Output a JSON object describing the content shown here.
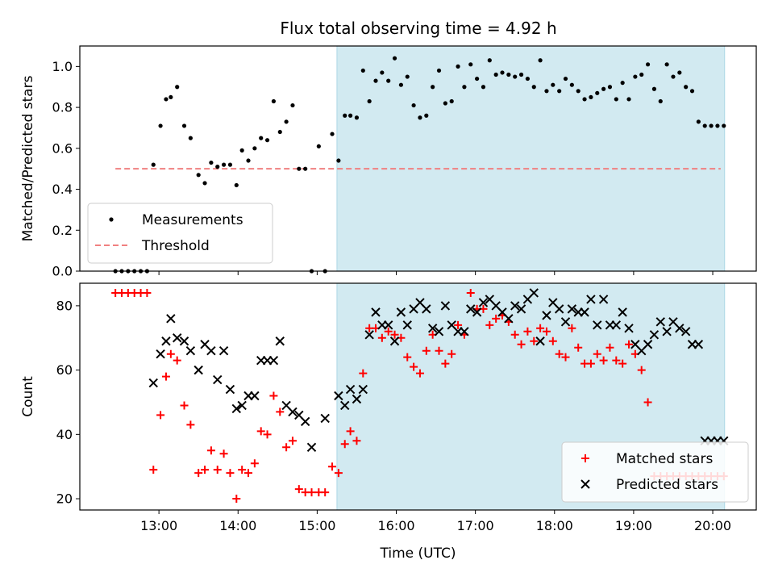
{
  "chart_data": {
    "title": "Flux total observing time = 4.92 h",
    "shaded_span": {
      "x": [
        15.25,
        20.15
      ],
      "color": "#add8e6"
    },
    "panels": [
      {
        "type": "scatter",
        "ylabel": "Matched/Predicted stars",
        "xlim": [
          12.0,
          20.55
        ],
        "ylim": [
          0.0,
          1.1
        ],
        "yticks": [
          0.0,
          0.2,
          0.4,
          0.6,
          0.8,
          1.0
        ],
        "ytick_labels": [
          "0.0",
          "0.2",
          "0.4",
          "0.6",
          "0.8",
          "1.0"
        ],
        "legend_position": "lower-left",
        "threshold": {
          "name": "Threshold",
          "y": 0.5,
          "x": [
            12.45,
            20.1
          ],
          "color": "#f08080"
        },
        "series": [
          {
            "name": "Measurements",
            "marker": "dot",
            "color": "#000000",
            "x": [
              12.45,
              12.53,
              12.61,
              12.69,
              12.77,
              12.85,
              12.93,
              13.02,
              13.09,
              13.15,
              13.23,
              13.32,
              13.4,
              13.5,
              13.58,
              13.66,
              13.74,
              13.82,
              13.9,
              13.98,
              14.05,
              14.13,
              14.21,
              14.29,
              14.37,
              14.45,
              14.53,
              14.61,
              14.69,
              14.77,
              14.85,
              14.93,
              15.02,
              15.1,
              15.19,
              15.27,
              15.35,
              15.42,
              15.5,
              15.58,
              15.66,
              15.74,
              15.82,
              15.9,
              15.98,
              16.06,
              16.14,
              16.22,
              16.3,
              16.38,
              16.46,
              16.54,
              16.62,
              16.7,
              16.78,
              16.86,
              16.94,
              17.02,
              17.1,
              17.18,
              17.26,
              17.34,
              17.42,
              17.5,
              17.58,
              17.66,
              17.74,
              17.82,
              17.9,
              17.98,
              18.06,
              18.14,
              18.22,
              18.3,
              18.38,
              18.46,
              18.54,
              18.62,
              18.7,
              18.78,
              18.86,
              18.94,
              19.02,
              19.1,
              19.18,
              19.26,
              19.34,
              19.42,
              19.5,
              19.58,
              19.66,
              19.74,
              19.82,
              19.9,
              19.98,
              20.06,
              20.14
            ],
            "y": [
              0.0,
              0.0,
              0.0,
              0.0,
              0.0,
              0.0,
              0.52,
              0.71,
              0.84,
              0.85,
              0.9,
              0.71,
              0.65,
              0.47,
              0.43,
              0.53,
              0.51,
              0.52,
              0.52,
              0.42,
              0.59,
              0.54,
              0.6,
              0.65,
              0.64,
              0.83,
              0.68,
              0.73,
              0.81,
              0.5,
              0.5,
              0.0,
              0.61,
              0.0,
              0.67,
              0.54,
              0.76,
              0.76,
              0.75,
              0.98,
              0.83,
              0.93,
              0.97,
              0.93,
              1.04,
              0.91,
              0.95,
              0.81,
              0.75,
              0.76,
              0.9,
              0.98,
              0.82,
              0.83,
              1.0,
              0.9,
              1.01,
              0.94,
              0.9,
              1.03,
              0.96,
              0.97,
              0.96,
              0.95,
              0.96,
              0.94,
              0.9,
              1.03,
              0.88,
              0.91,
              0.88,
              0.94,
              0.91,
              0.88,
              0.84,
              0.85,
              0.87,
              0.89,
              0.9,
              0.84,
              0.92,
              0.84,
              0.95,
              0.96,
              1.01,
              0.89,
              0.83,
              1.01,
              0.95,
              0.97,
              0.9,
              0.88,
              0.73,
              0.71,
              0.71,
              0.71,
              0.71
            ]
          }
        ]
      },
      {
        "type": "scatter",
        "ylabel": "Count",
        "xlabel": "Time (UTC)",
        "xlim": [
          12.0,
          20.55
        ],
        "ylim": [
          16.5,
          87.0
        ],
        "yticks": [
          20,
          40,
          60,
          80
        ],
        "ytick_labels": [
          "20",
          "40",
          "60",
          "80"
        ],
        "xticks": [
          13,
          14,
          15,
          16,
          17,
          18,
          19,
          20
        ],
        "xtick_labels": [
          "13:00",
          "14:00",
          "15:00",
          "16:00",
          "17:00",
          "18:00",
          "19:00",
          "20:00"
        ],
        "legend_position": "lower-right",
        "series": [
          {
            "name": "Matched stars",
            "marker": "plus",
            "color": "#ff0000",
            "x": [
              12.45,
              12.53,
              12.61,
              12.69,
              12.77,
              12.85,
              12.93,
              13.02,
              13.09,
              13.15,
              13.23,
              13.32,
              13.4,
              13.5,
              13.58,
              13.66,
              13.74,
              13.82,
              13.9,
              13.98,
              14.05,
              14.13,
              14.21,
              14.29,
              14.37,
              14.45,
              14.53,
              14.61,
              14.69,
              14.77,
              14.85,
              14.93,
              15.02,
              15.1,
              15.19,
              15.27,
              15.35,
              15.42,
              15.5,
              15.58,
              15.66,
              15.74,
              15.82,
              15.9,
              15.98,
              16.06,
              16.14,
              16.22,
              16.3,
              16.38,
              16.46,
              16.54,
              16.62,
              16.7,
              16.78,
              16.86,
              16.94,
              17.02,
              17.1,
              17.18,
              17.26,
              17.34,
              17.42,
              17.5,
              17.58,
              17.66,
              17.74,
              17.82,
              17.9,
              17.98,
              18.06,
              18.14,
              18.22,
              18.3,
              18.38,
              18.46,
              18.54,
              18.62,
              18.7,
              18.78,
              18.86,
              18.94,
              19.02,
              19.1,
              19.18,
              19.26,
              19.34,
              19.42,
              19.5,
              19.58,
              19.66,
              19.74,
              19.82,
              19.9,
              19.98,
              20.06,
              20.14
            ],
            "y": [
              84,
              84,
              84,
              84,
              84,
              84,
              29,
              46,
              58,
              65,
              63,
              49,
              43,
              28,
              29,
              35,
              29,
              34,
              28,
              20,
              29,
              28,
              31,
              41,
              40,
              52,
              47,
              36,
              38,
              23,
              22,
              22,
              22,
              22,
              30,
              28,
              37,
              41,
              38,
              59,
              73,
              73,
              70,
              72,
              71,
              70,
              64,
              61,
              59,
              66,
              71,
              66,
              62,
              65,
              74,
              71,
              84,
              79,
              79,
              74,
              76,
              77,
              75,
              71,
              68,
              72,
              69,
              73,
              72,
              69,
              65,
              64,
              73,
              67,
              62,
              62,
              65,
              63,
              67,
              63,
              62,
              68,
              65,
              60,
              50,
              27,
              27,
              27,
              27,
              27,
              27,
              27,
              27,
              27,
              27,
              27,
              27
            ]
          },
          {
            "name": "Predicted stars",
            "marker": "x",
            "color": "#000000",
            "x": [
              12.93,
              13.02,
              13.09,
              13.15,
              13.23,
              13.32,
              13.4,
              13.5,
              13.58,
              13.66,
              13.74,
              13.82,
              13.9,
              13.98,
              14.05,
              14.13,
              14.21,
              14.29,
              14.37,
              14.45,
              14.53,
              14.61,
              14.69,
              14.77,
              14.85,
              14.93,
              15.1,
              15.27,
              15.35,
              15.42,
              15.5,
              15.58,
              15.66,
              15.74,
              15.82,
              15.9,
              15.98,
              16.06,
              16.14,
              16.22,
              16.3,
              16.38,
              16.46,
              16.54,
              16.62,
              16.7,
              16.78,
              16.86,
              16.94,
              17.02,
              17.1,
              17.18,
              17.26,
              17.34,
              17.42,
              17.5,
              17.58,
              17.66,
              17.74,
              17.82,
              17.9,
              17.98,
              18.06,
              18.14,
              18.22,
              18.3,
              18.38,
              18.46,
              18.54,
              18.62,
              18.7,
              18.78,
              18.86,
              18.94,
              19.02,
              19.1,
              19.18,
              19.26,
              19.34,
              19.42,
              19.5,
              19.58,
              19.66,
              19.74,
              19.82,
              19.9,
              19.98,
              20.06,
              20.14
            ],
            "y": [
              56,
              65,
              69,
              76,
              70,
              69,
              66,
              60,
              68,
              66,
              57,
              66,
              54,
              48,
              49,
              52,
              52,
              63,
              63,
              63,
              69,
              49,
              47,
              46,
              44,
              36,
              45,
              52,
              49,
              54,
              51,
              54,
              71,
              78,
              74,
              74,
              69,
              78,
              74,
              79,
              81,
              79,
              73,
              72,
              80,
              74,
              72,
              72,
              79,
              78,
              81,
              82,
              80,
              78,
              76,
              80,
              79,
              82,
              84,
              69,
              77,
              81,
              79,
              75,
              79,
              78,
              78,
              82,
              74,
              82,
              74,
              74,
              78,
              73,
              68,
              66,
              68,
              71,
              75,
              72,
              75,
              73,
              72,
              68,
              68,
              38,
              38,
              38,
              38
            ]
          }
        ]
      }
    ]
  }
}
